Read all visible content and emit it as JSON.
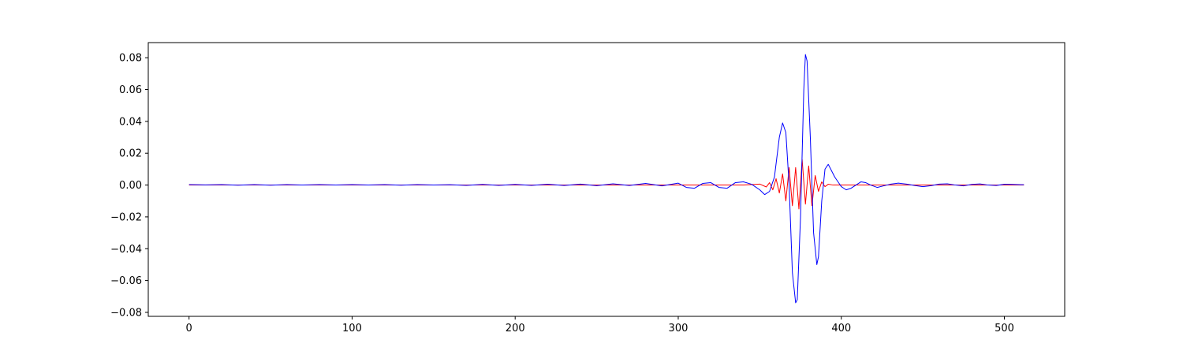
{
  "chart_data": {
    "type": "line",
    "title": "",
    "xlabel": "",
    "ylabel": "",
    "xlim": [
      -25,
      537
    ],
    "ylim": [
      -0.0825,
      0.0895
    ],
    "grid": false,
    "x_ticks": [
      0,
      100,
      200,
      300,
      400,
      500
    ],
    "x_tick_labels": [
      "0",
      "100",
      "200",
      "300",
      "400",
      "500"
    ],
    "y_ticks": [
      -0.08,
      -0.06,
      -0.04,
      -0.02,
      0.0,
      0.02,
      0.04,
      0.06,
      0.08
    ],
    "y_tick_labels": [
      "−0.08",
      "−0.06",
      "−0.04",
      "−0.02",
      "0.00",
      "0.02",
      "0.04",
      "0.06",
      "0.08"
    ],
    "series": [
      {
        "color": "#ff0000",
        "points": [
          [
            0,
            0
          ],
          [
            340,
            0
          ],
          [
            350,
            0.0006
          ],
          [
            354,
            -0.0012
          ],
          [
            356,
            0.0015
          ],
          [
            358,
            -0.003
          ],
          [
            360,
            0.004
          ],
          [
            362,
            -0.005
          ],
          [
            364,
            0.007
          ],
          [
            366,
            -0.01
          ],
          [
            368,
            0.011
          ],
          [
            370,
            -0.013
          ],
          [
            372,
            0.011
          ],
          [
            374,
            -0.015
          ],
          [
            376,
            0.016
          ],
          [
            378,
            -0.012
          ],
          [
            380,
            0.012
          ],
          [
            382,
            -0.013
          ],
          [
            384,
            0.006
          ],
          [
            386,
            -0.004
          ],
          [
            388,
            0.002
          ],
          [
            390,
            -0.001
          ],
          [
            392,
            0.0005
          ],
          [
            395,
            0
          ],
          [
            512,
            0
          ]
        ]
      },
      {
        "color": "#0000ff",
        "points": [
          [
            0,
            0.0003
          ],
          [
            10,
            0.0001
          ],
          [
            20,
            0.0003
          ],
          [
            30,
            -0.0001
          ],
          [
            40,
            0.0003
          ],
          [
            50,
            -0.0001
          ],
          [
            60,
            0.0003
          ],
          [
            70,
            0
          ],
          [
            80,
            0.0003
          ],
          [
            90,
            0
          ],
          [
            100,
            0.0003
          ],
          [
            110,
            0
          ],
          [
            120,
            0.0003
          ],
          [
            130,
            -0.0001
          ],
          [
            140,
            0.0003
          ],
          [
            150,
            0
          ],
          [
            160,
            0.0002
          ],
          [
            170,
            -0.0002
          ],
          [
            180,
            0.0004
          ],
          [
            190,
            -0.0002
          ],
          [
            200,
            0.0004
          ],
          [
            210,
            -0.0002
          ],
          [
            220,
            0.0005
          ],
          [
            230,
            -0.0003
          ],
          [
            240,
            0.0006
          ],
          [
            250,
            -0.0004
          ],
          [
            260,
            0.0008
          ],
          [
            270,
            -0.0003
          ],
          [
            280,
            0.001
          ],
          [
            290,
            -0.0005
          ],
          [
            300,
            0.0012
          ],
          [
            305,
            -0.0015
          ],
          [
            310,
            -0.002
          ],
          [
            315,
            0.001
          ],
          [
            320,
            0.0015
          ],
          [
            325,
            -0.0015
          ],
          [
            330,
            -0.002
          ],
          [
            335,
            0.0015
          ],
          [
            340,
            0.002
          ],
          [
            345,
            0.0005
          ],
          [
            350,
            -0.003
          ],
          [
            353,
            -0.006
          ],
          [
            356,
            -0.004
          ],
          [
            359,
            0.005
          ],
          [
            362,
            0.03
          ],
          [
            364,
            0.039
          ],
          [
            366,
            0.033
          ],
          [
            368,
            0.0
          ],
          [
            370,
            -0.055
          ],
          [
            372,
            -0.074
          ],
          [
            373,
            -0.072
          ],
          [
            375,
            -0.02
          ],
          [
            377,
            0.06
          ],
          [
            378,
            0.082
          ],
          [
            379,
            0.078
          ],
          [
            381,
            0.03
          ],
          [
            383,
            -0.03
          ],
          [
            385,
            -0.05
          ],
          [
            386,
            -0.045
          ],
          [
            388,
            -0.01
          ],
          [
            390,
            0.01
          ],
          [
            392,
            0.013
          ],
          [
            394,
            0.009
          ],
          [
            396,
            0.005
          ],
          [
            398,
            0.002
          ],
          [
            400,
            -0.001
          ],
          [
            403,
            -0.003
          ],
          [
            406,
            -0.002
          ],
          [
            409,
            0.0
          ],
          [
            412,
            0.002
          ],
          [
            415,
            0.0015
          ],
          [
            418,
            0.0
          ],
          [
            422,
            -0.0015
          ],
          [
            426,
            -0.0005
          ],
          [
            430,
            0.0005
          ],
          [
            435,
            0.0012
          ],
          [
            440,
            0.0006
          ],
          [
            445,
            -0.0003
          ],
          [
            450,
            -0.001
          ],
          [
            455,
            -0.0004
          ],
          [
            460,
            0.0006
          ],
          [
            465,
            0.0008
          ],
          [
            470,
            0.0
          ],
          [
            475,
            -0.0005
          ],
          [
            480,
            0.0004
          ],
          [
            485,
            0.0007
          ],
          [
            490,
            0.0
          ],
          [
            495,
            -0.0003
          ],
          [
            500,
            0.0005
          ],
          [
            505,
            0.0004
          ],
          [
            510,
            0.0002
          ],
          [
            512,
            0.0002
          ]
        ]
      }
    ]
  }
}
